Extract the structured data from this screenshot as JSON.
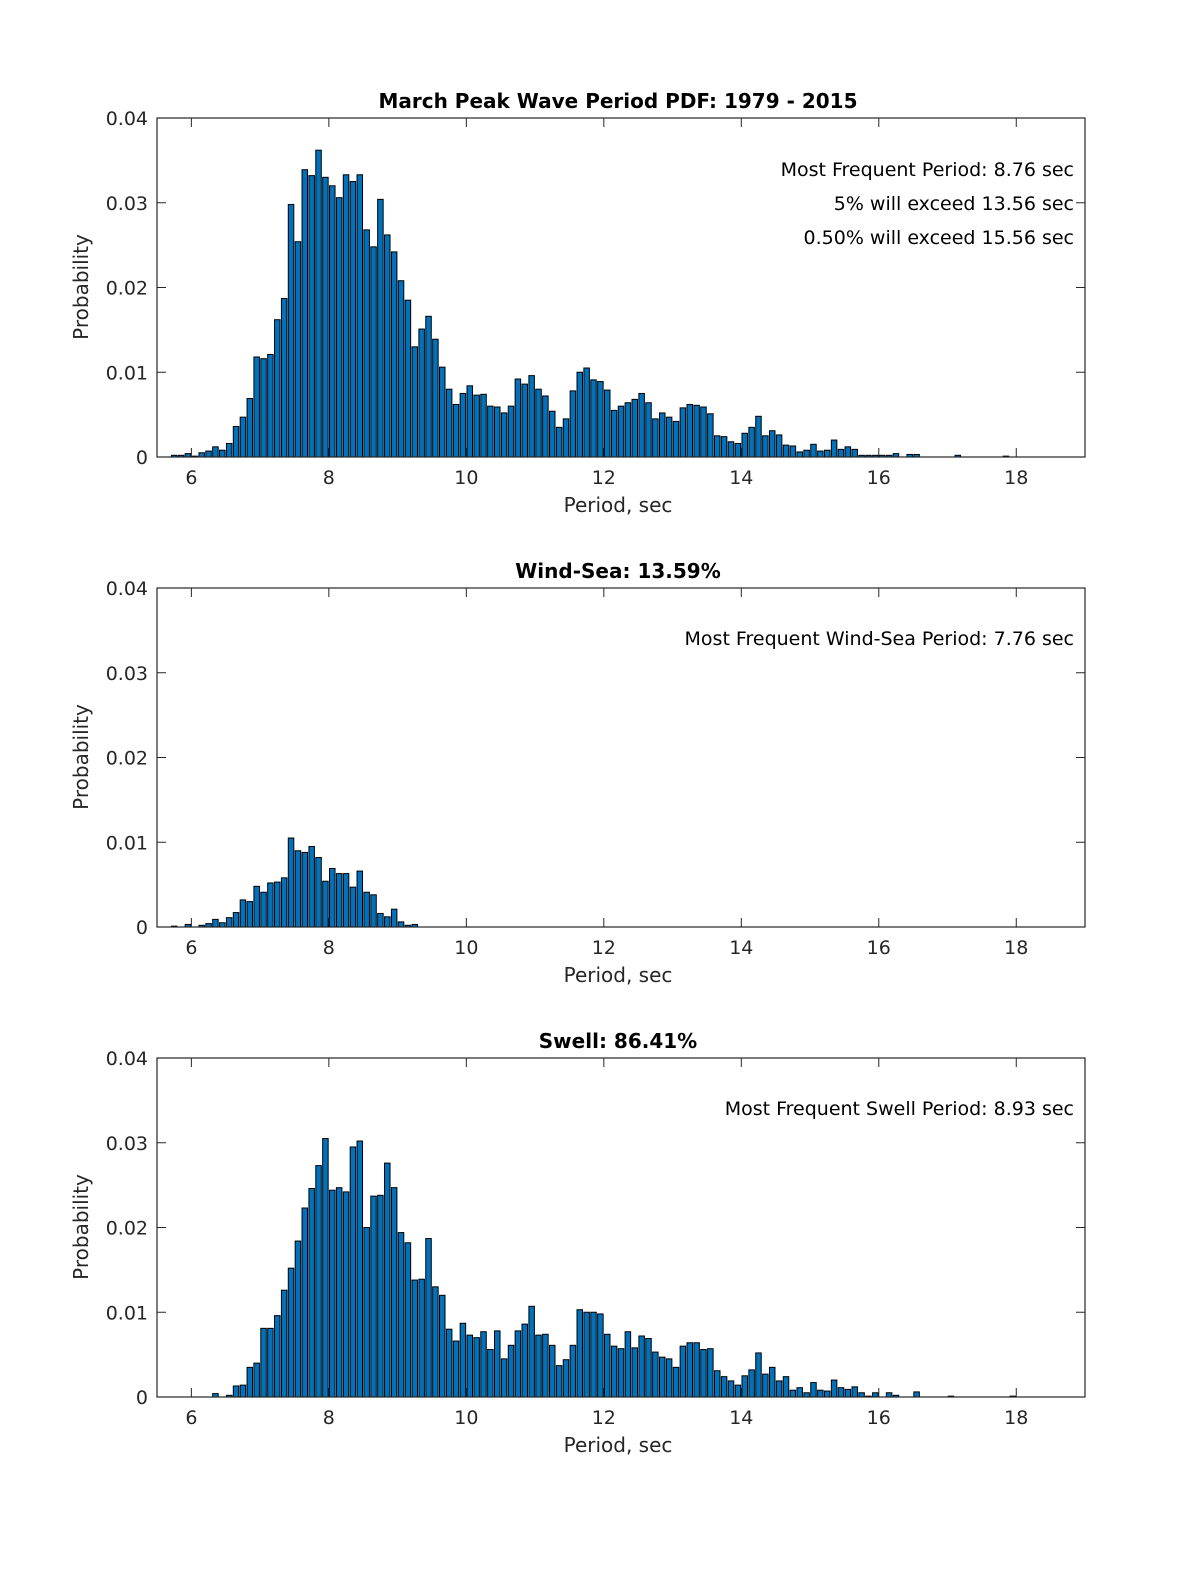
{
  "colors": {
    "bar_fill": "#0072bd",
    "bar_edge": "#000000",
    "axis": "#262626"
  },
  "chart_data": [
    {
      "type": "bar",
      "title": "March Peak Wave Period PDF: 1979 - 2015",
      "xlabel": "Period, sec",
      "ylabel": "Probability",
      "xlim": [
        5.5,
        19
      ],
      "ylim": [
        0,
        0.04
      ],
      "xticks": [
        6,
        8,
        10,
        12,
        14,
        16,
        18
      ],
      "xtick_labels": [
        "6",
        "8",
        "10",
        "12",
        "14",
        "16",
        "18"
      ],
      "yticks": [
        0,
        0.01,
        0.02,
        0.03,
        0.04
      ],
      "ytick_labels": [
        "0",
        "0.01",
        "0.02",
        "0.03",
        "0.04"
      ],
      "bin_start": 5.75,
      "bin_width": 0.1,
      "annotations": [
        "Most Frequent Period: 8.76 sec",
        "5% will exceed 13.56 sec",
        "0.50% will exceed 15.56 sec"
      ],
      "values": [
        0.0002,
        0.0002,
        0.0004,
        0.0001,
        0.0005,
        0.0007,
        0.0012,
        0.0008,
        0.0016,
        0.0036,
        0.0047,
        0.0069,
        0.0118,
        0.0116,
        0.0121,
        0.0162,
        0.0187,
        0.0298,
        0.0254,
        0.0339,
        0.0332,
        0.0362,
        0.033,
        0.032,
        0.0306,
        0.0333,
        0.0325,
        0.0333,
        0.0268,
        0.0248,
        0.0304,
        0.0262,
        0.0242,
        0.0208,
        0.0185,
        0.013,
        0.0151,
        0.0166,
        0.0139,
        0.0106,
        0.008,
        0.0062,
        0.0075,
        0.0084,
        0.0073,
        0.0074,
        0.006,
        0.0059,
        0.0052,
        0.006,
        0.0092,
        0.0086,
        0.0096,
        0.008,
        0.0072,
        0.0054,
        0.0035,
        0.0045,
        0.0078,
        0.01,
        0.0105,
        0.0091,
        0.0089,
        0.0079,
        0.0055,
        0.006,
        0.0064,
        0.0068,
        0.0075,
        0.0064,
        0.0045,
        0.0052,
        0.0047,
        0.0042,
        0.0058,
        0.0062,
        0.0061,
        0.0059,
        0.0051,
        0.0025,
        0.0024,
        0.0018,
        0.0016,
        0.0028,
        0.0035,
        0.0048,
        0.0025,
        0.0031,
        0.0026,
        0.0014,
        0.0013,
        0.0006,
        0.0008,
        0.0015,
        0.0007,
        0.0008,
        0.002,
        0.0009,
        0.0012,
        0.0009,
        0.0002,
        0.0002,
        0.0002,
        0.0002,
        0.0002,
        0.0004,
        0.0,
        0.0003,
        0.0003,
        0.0,
        0.0,
        0.0,
        0.0,
        0.0,
        0.0002,
        0.0,
        0.0,
        0.0,
        0.0,
        0.0,
        0.0,
        0.0001,
        0.0,
        0.0,
        0.0,
        0.0,
        0.0,
        0.0,
        0.0,
        0.0,
        0.0,
        0.0
      ]
    },
    {
      "type": "bar",
      "title": "Wind-Sea: 13.59%",
      "xlabel": "Period, sec",
      "ylabel": "Probability",
      "xlim": [
        5.5,
        19
      ],
      "ylim": [
        0,
        0.04
      ],
      "xticks": [
        6,
        8,
        10,
        12,
        14,
        16,
        18
      ],
      "xtick_labels": [
        "6",
        "8",
        "10",
        "12",
        "14",
        "16",
        "18"
      ],
      "yticks": [
        0,
        0.01,
        0.02,
        0.03,
        0.04
      ],
      "ytick_labels": [
        "0",
        "0.01",
        "0.02",
        "0.03",
        "0.04"
      ],
      "bin_start": 5.75,
      "bin_width": 0.1,
      "annotations": [
        "Most Frequent Wind-Sea Period: 7.76 sec"
      ],
      "values": [
        0.0001,
        0.0,
        0.0003,
        0.0,
        0.0002,
        0.0004,
        0.0009,
        0.0005,
        0.0011,
        0.0017,
        0.0032,
        0.003,
        0.0048,
        0.0041,
        0.0052,
        0.0053,
        0.0058,
        0.0105,
        0.009,
        0.0088,
        0.0095,
        0.0082,
        0.0054,
        0.0069,
        0.0063,
        0.0063,
        0.0047,
        0.0066,
        0.0041,
        0.0038,
        0.0016,
        0.0012,
        0.0021,
        0.0006,
        0.0002,
        0.0003,
        0.0,
        0.0,
        0.0,
        0.0,
        0.0,
        0.0,
        0.0,
        0.0,
        0.0,
        0.0,
        0.0,
        0.0,
        0.0,
        0.0,
        0.0,
        0.0,
        0.0,
        0.0,
        0.0,
        0.0,
        0.0,
        0.0,
        0.0,
        0.0,
        0.0,
        0.0,
        0.0,
        0.0,
        0.0,
        0.0,
        0.0,
        0.0,
        0.0,
        0.0,
        0.0,
        0.0,
        0.0,
        0.0,
        0.0,
        0.0,
        0.0,
        0.0,
        0.0,
        0.0,
        0.0,
        0.0,
        0.0,
        0.0,
        0.0,
        0.0,
        0.0,
        0.0,
        0.0,
        0.0,
        0.0,
        0.0,
        0.0,
        0.0,
        0.0,
        0.0,
        0.0,
        0.0,
        0.0,
        0.0,
        0.0,
        0.0,
        0.0,
        0.0,
        0.0,
        0.0,
        0.0,
        0.0,
        0.0,
        0.0,
        0.0,
        0.0,
        0.0,
        0.0,
        0.0,
        0.0,
        0.0,
        0.0,
        0.0,
        0.0,
        0.0,
        0.0,
        0.0,
        0.0,
        0.0,
        0.0,
        0.0,
        0.0,
        0.0,
        0.0,
        0.0,
        0.0,
        0.0,
        0.0
      ]
    },
    {
      "type": "bar",
      "title": "Swell: 86.41%",
      "xlabel": "Period, sec",
      "ylabel": "Probability",
      "xlim": [
        5.5,
        19
      ],
      "ylim": [
        0,
        0.04
      ],
      "xticks": [
        6,
        8,
        10,
        12,
        14,
        16,
        18
      ],
      "xtick_labels": [
        "6",
        "8",
        "10",
        "12",
        "14",
        "16",
        "18"
      ],
      "yticks": [
        0,
        0.01,
        0.02,
        0.03,
        0.04
      ],
      "ytick_labels": [
        "0",
        "0.01",
        "0.02",
        "0.03",
        "0.04"
      ],
      "bin_start": 5.75,
      "bin_width": 0.1,
      "annotations": [
        "Most Frequent Swell Period: 8.93 sec"
      ],
      "values": [
        0.0,
        0.0,
        0.0,
        0.0,
        0.0,
        0.0,
        0.0004,
        0.0,
        0.0002,
        0.0013,
        0.0014,
        0.0035,
        0.004,
        0.0081,
        0.0081,
        0.0096,
        0.0126,
        0.0152,
        0.0184,
        0.0223,
        0.0246,
        0.0273,
        0.0305,
        0.0244,
        0.0247,
        0.0242,
        0.0295,
        0.0302,
        0.02,
        0.0237,
        0.0238,
        0.0276,
        0.0247,
        0.0194,
        0.0182,
        0.0138,
        0.0139,
        0.0187,
        0.013,
        0.012,
        0.008,
        0.0066,
        0.0087,
        0.0073,
        0.007,
        0.0077,
        0.0056,
        0.0078,
        0.0045,
        0.0061,
        0.0078,
        0.0086,
        0.0107,
        0.0073,
        0.0074,
        0.0061,
        0.0037,
        0.0044,
        0.0061,
        0.0103,
        0.01,
        0.01,
        0.0098,
        0.0074,
        0.006,
        0.0057,
        0.0077,
        0.0058,
        0.0072,
        0.0069,
        0.0053,
        0.0047,
        0.0045,
        0.0035,
        0.006,
        0.0064,
        0.0064,
        0.0056,
        0.0057,
        0.0031,
        0.0024,
        0.0019,
        0.0014,
        0.0025,
        0.0032,
        0.0052,
        0.0027,
        0.0035,
        0.0019,
        0.0024,
        0.0008,
        0.0011,
        0.0005,
        0.0017,
        0.0008,
        0.0007,
        0.002,
        0.0011,
        0.0009,
        0.0012,
        0.0005,
        0.0001,
        0.0005,
        0.0,
        0.0005,
        0.0002,
        0.0,
        0.0,
        0.0006,
        0.0,
        0.0,
        0.0,
        0.0,
        0.0001,
        0.0,
        0.0,
        0.0,
        0.0,
        0.0,
        0.0,
        0.0,
        0.0,
        0.0001,
        0.0,
        0.0,
        0.0,
        0.0,
        0.0,
        0.0,
        0.0,
        0.0,
        0.0,
        0.0,
        0.0
      ]
    }
  ]
}
